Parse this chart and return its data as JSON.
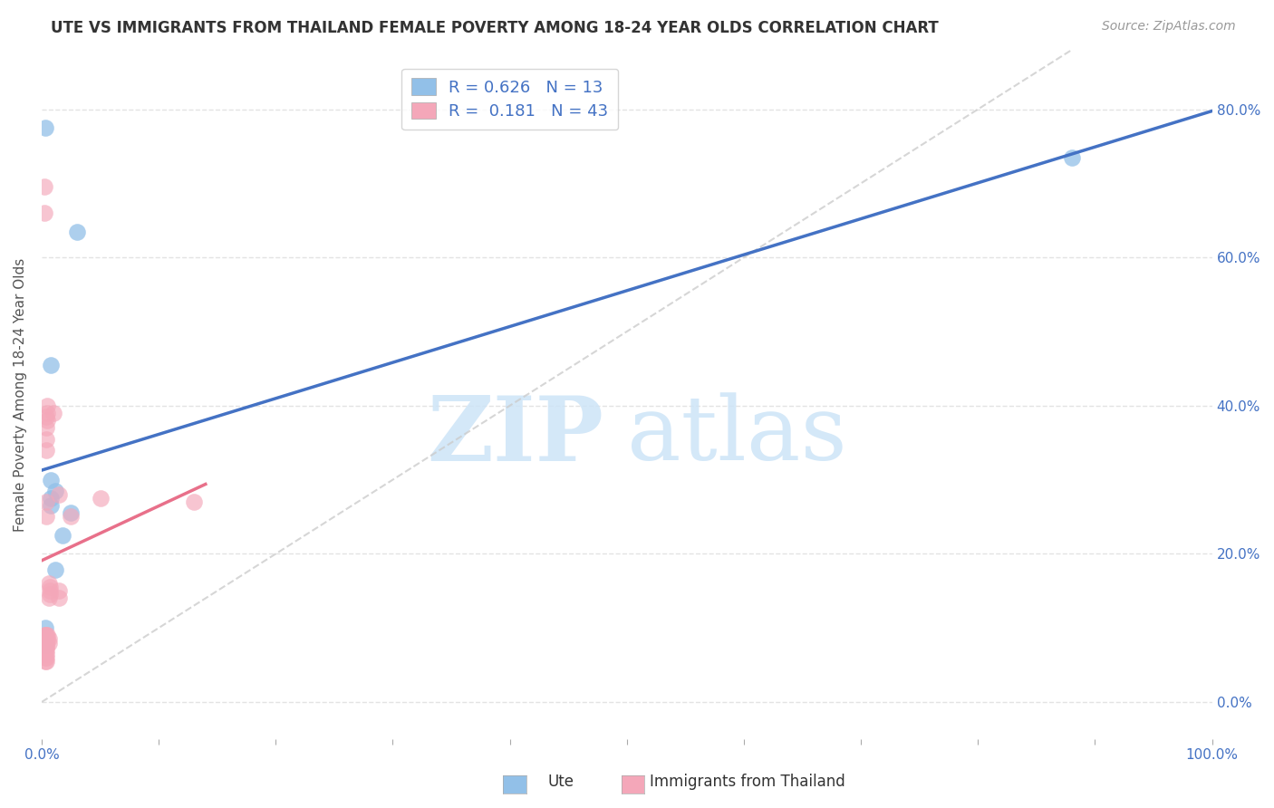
{
  "title": "UTE VS IMMIGRANTS FROM THAILAND FEMALE POVERTY AMONG 18-24 YEAR OLDS CORRELATION CHART",
  "source": "Source: ZipAtlas.com",
  "ylabel": "Female Poverty Among 18-24 Year Olds",
  "xlim": [
    0,
    1.0
  ],
  "ylim": [
    -0.05,
    0.88
  ],
  "ytick_vals": [
    0.0,
    0.2,
    0.4,
    0.6,
    0.8
  ],
  "ytick_labels": [
    "0.0%",
    "20.0%",
    "40.0%",
    "60.0%",
    "80.0%"
  ],
  "xtick_vals": [
    0.0,
    0.1,
    0.2,
    0.3,
    0.4,
    0.5,
    0.6,
    0.7,
    0.8,
    0.9,
    1.0
  ],
  "ute_color": "#92c0e8",
  "thailand_color": "#f4a7b9",
  "ute_r": 0.626,
  "ute_n": 13,
  "thailand_r": 0.181,
  "thailand_n": 43,
  "watermark_zip": "ZIP",
  "watermark_atlas": "atlas",
  "ute_scatter": [
    [
      0.003,
      0.775
    ],
    [
      0.003,
      0.077
    ],
    [
      0.003,
      0.1
    ],
    [
      0.008,
      0.455
    ],
    [
      0.008,
      0.3
    ],
    [
      0.008,
      0.265
    ],
    [
      0.008,
      0.275
    ],
    [
      0.012,
      0.285
    ],
    [
      0.012,
      0.178
    ],
    [
      0.018,
      0.225
    ],
    [
      0.025,
      0.255
    ],
    [
      0.03,
      0.635
    ],
    [
      0.88,
      0.735
    ]
  ],
  "thailand_scatter": [
    [
      0.002,
      0.695
    ],
    [
      0.002,
      0.66
    ],
    [
      0.002,
      0.09
    ],
    [
      0.003,
      0.09
    ],
    [
      0.003,
      0.085
    ],
    [
      0.003,
      0.075
    ],
    [
      0.003,
      0.07
    ],
    [
      0.003,
      0.06
    ],
    [
      0.003,
      0.055
    ],
    [
      0.004,
      0.09
    ],
    [
      0.004,
      0.08
    ],
    [
      0.004,
      0.075
    ],
    [
      0.004,
      0.07
    ],
    [
      0.004,
      0.065
    ],
    [
      0.004,
      0.06
    ],
    [
      0.004,
      0.055
    ],
    [
      0.004,
      0.385
    ],
    [
      0.004,
      0.37
    ],
    [
      0.004,
      0.355
    ],
    [
      0.004,
      0.34
    ],
    [
      0.004,
      0.27
    ],
    [
      0.004,
      0.25
    ],
    [
      0.004,
      0.08
    ],
    [
      0.004,
      0.075
    ],
    [
      0.005,
      0.4
    ],
    [
      0.005,
      0.39
    ],
    [
      0.005,
      0.38
    ],
    [
      0.005,
      0.09
    ],
    [
      0.005,
      0.085
    ],
    [
      0.006,
      0.085
    ],
    [
      0.006,
      0.08
    ],
    [
      0.006,
      0.16
    ],
    [
      0.006,
      0.14
    ],
    [
      0.007,
      0.155
    ],
    [
      0.007,
      0.15
    ],
    [
      0.007,
      0.145
    ],
    [
      0.01,
      0.39
    ],
    [
      0.015,
      0.28
    ],
    [
      0.015,
      0.15
    ],
    [
      0.015,
      0.14
    ],
    [
      0.025,
      0.25
    ],
    [
      0.05,
      0.275
    ],
    [
      0.13,
      0.27
    ]
  ],
  "diagonal_color": "#cccccc",
  "regression_blue_color": "#4472c4",
  "regression_pink_color": "#e8708a",
  "background_color": "#ffffff",
  "grid_color": "#dddddd",
  "tick_color": "#4472c4",
  "title_color": "#333333",
  "source_color": "#999999",
  "ylabel_color": "#555555"
}
